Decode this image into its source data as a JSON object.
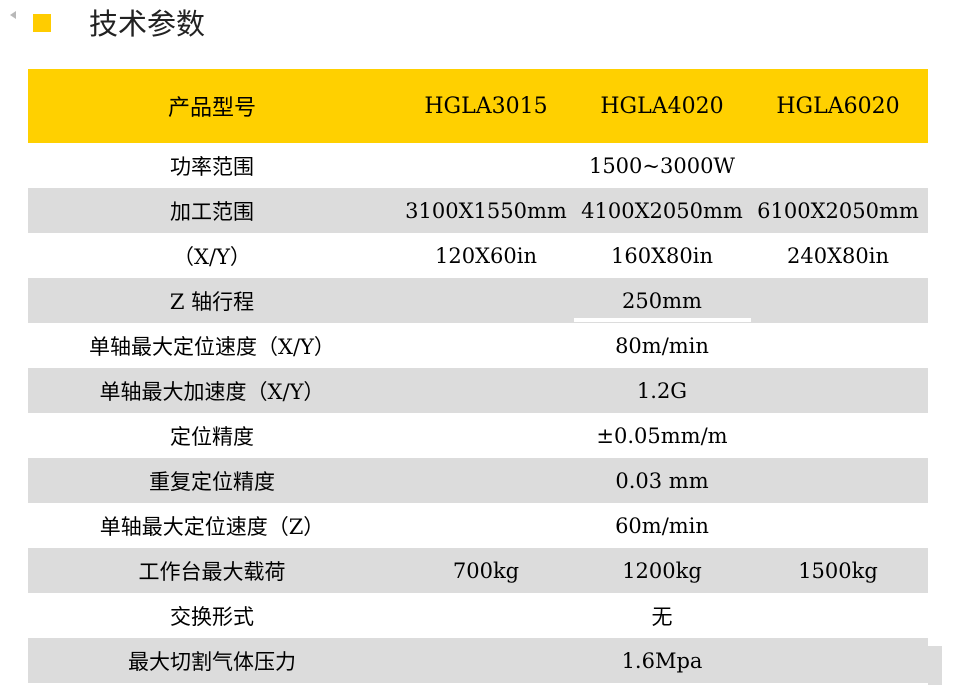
{
  "page": {
    "title": "技术参数"
  },
  "colors": {
    "accent": "#ffcc00",
    "header_bg": "#ffd000",
    "stripe": "#dcdcdc"
  },
  "table": {
    "header": [
      "产品型号",
      "HGLA3015",
      "HGLA4020",
      "HGLA6020"
    ],
    "rows": [
      {
        "label": "功率范围",
        "span": "1500~3000W"
      },
      {
        "label": "加工范围",
        "values": [
          "3100X1550mm",
          "4100X2050mm",
          "6100X2050mm"
        ]
      },
      {
        "label": "（X/Y）",
        "values": [
          "120X60in",
          "160X80in",
          "240X80in"
        ]
      },
      {
        "label": "Z 轴行程",
        "span": "250mm"
      },
      {
        "label": "单轴最大定位速度（X/Y）",
        "span": "80m/min"
      },
      {
        "label": "单轴最大加速度（X/Y）",
        "span": "1.2G"
      },
      {
        "label": "定位精度",
        "span": "±0.05mm/m"
      },
      {
        "label": "重复定位精度",
        "span": "0.03 mm"
      },
      {
        "label": "单轴最大定位速度（Z）",
        "span": "60m/min"
      },
      {
        "label": "工作台最大载荷",
        "values": [
          "700kg",
          "1200kg",
          "1500kg"
        ]
      },
      {
        "label": "交换形式",
        "span": "无"
      },
      {
        "label": "最大切割气体压力",
        "span": "1.6Mpa"
      }
    ]
  }
}
